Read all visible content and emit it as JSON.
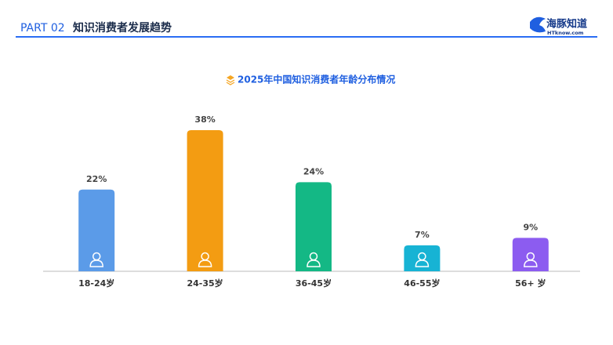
{
  "header": {
    "part": "PART 02",
    "title": "知识消费者发展趋势"
  },
  "logo": {
    "name": "海豚知道",
    "url": "HTknow.com"
  },
  "chart_data": {
    "type": "bar",
    "title": "2025年中国知识消费者年龄分布情况",
    "categories": [
      "18-24岁",
      "24-35岁",
      "36-45岁",
      "46-55岁",
      "56+ 岁"
    ],
    "values": [
      22,
      38,
      24,
      7,
      9
    ],
    "value_labels": [
      "22%",
      "38%",
      "24%",
      "7%",
      "9%"
    ],
    "colors": [
      "#5b9be8",
      "#f39c12",
      "#14b885",
      "#17b3d4",
      "#8c5cf0"
    ]
  }
}
